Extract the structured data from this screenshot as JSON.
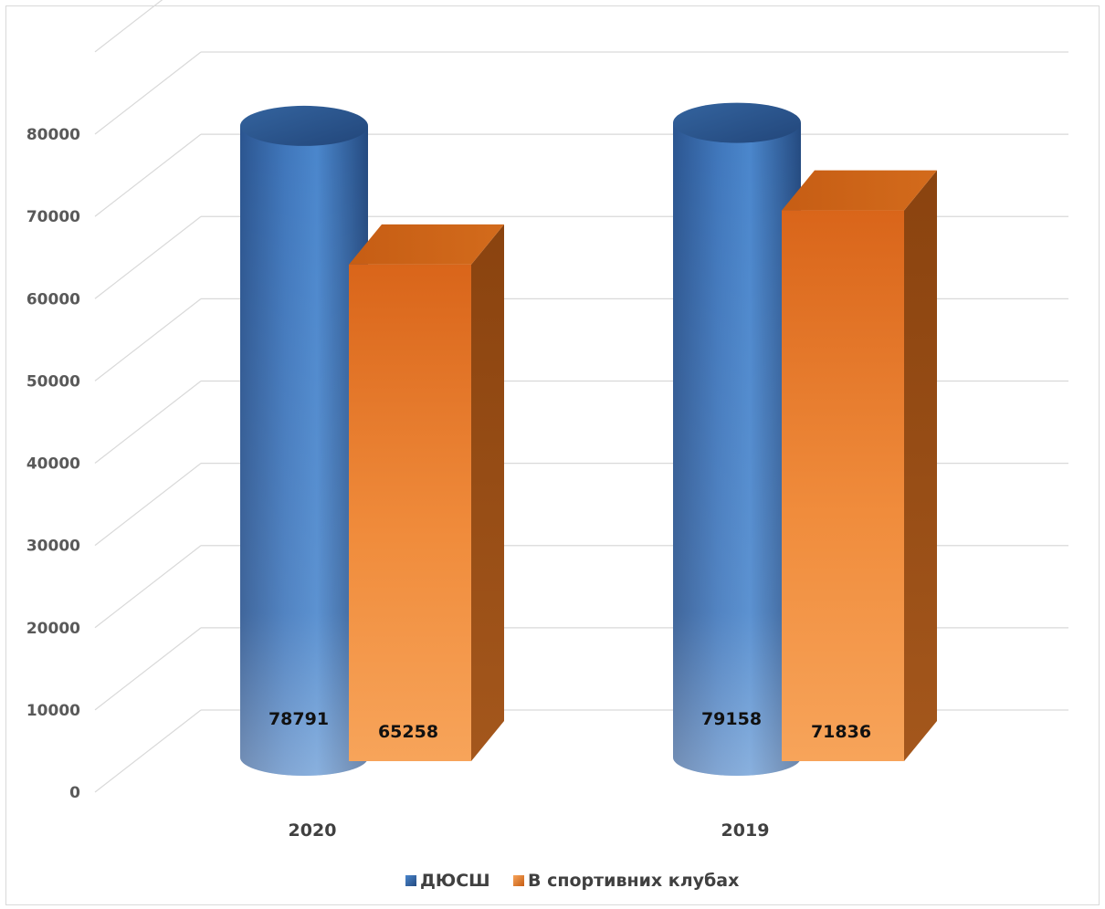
{
  "chart_data": {
    "type": "bar",
    "style": "3d-cylinder-and-box",
    "title": "",
    "xlabel": "",
    "ylabel": "",
    "categories": [
      "2020",
      "2019"
    ],
    "series": [
      {
        "name": "ДЮСШ",
        "values": [
          78791,
          79158
        ],
        "color": "#2e5e9e",
        "shape": "cylinder"
      },
      {
        "name": "В спортивних клубах",
        "values": [
          65258,
          71836
        ],
        "color": "#e8741f",
        "shape": "box"
      }
    ],
    "data_labels": [
      [
        "78791",
        "79158"
      ],
      [
        "65258",
        "71836"
      ]
    ],
    "y_ticks": [
      "0",
      "10000",
      "20000",
      "30000",
      "40000",
      "50000",
      "60000",
      "70000",
      "80000"
    ],
    "ylim": [
      0,
      80000
    ],
    "grid": true,
    "legend_position": "bottom"
  }
}
